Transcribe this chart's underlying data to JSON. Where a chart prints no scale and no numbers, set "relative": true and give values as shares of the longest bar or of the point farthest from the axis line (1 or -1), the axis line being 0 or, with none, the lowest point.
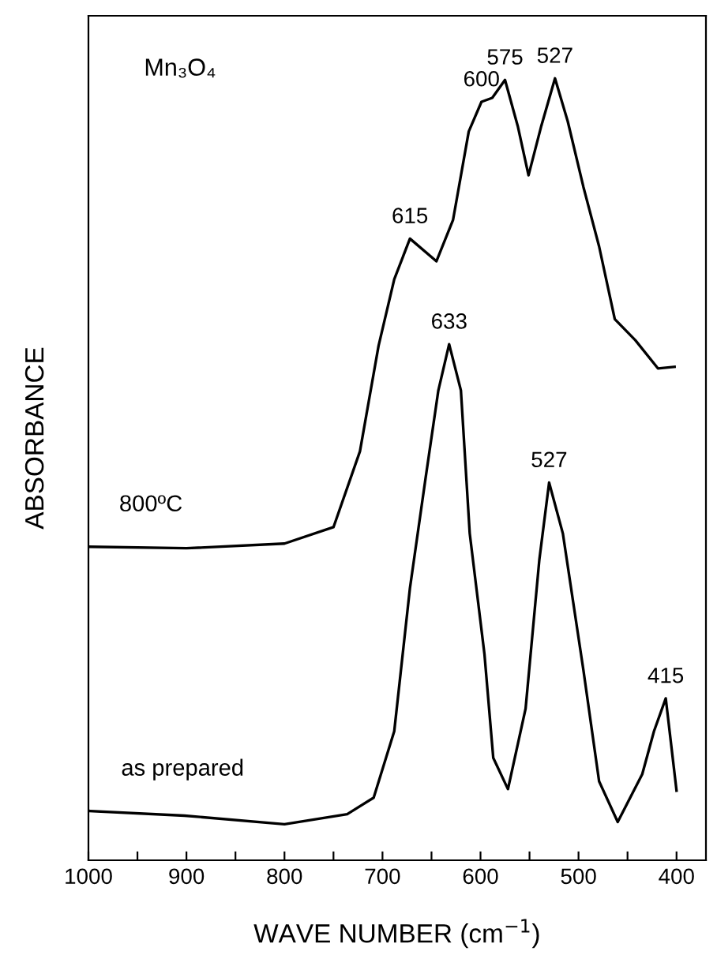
{
  "chart_data": {
    "type": "line",
    "relative": true,
    "xlabel": "WAVE NUMBER (cm$^{−1}$)",
    "ylabel": "ABSORBANCE",
    "xlim": [
      1000,
      370
    ],
    "xticks": [
      1000,
      {
        "value": 950,
        "label": null
      },
      900,
      {
        "value": 850,
        "label": null
      },
      800,
      {
        "value": 750,
        "label": null
      },
      700,
      {
        "value": 650,
        "label": null
      },
      600,
      {
        "value": 550,
        "label": null
      },
      500,
      {
        "value": 450,
        "label": null
      },
      400
    ],
    "grid": false,
    "legend": false,
    "marker": "none",
    "line_style": "solid",
    "series": [
      {
        "name": "800ºC",
        "color": "#000000",
        "x": [
          1000,
          900,
          800,
          750,
          723,
          704,
          688,
          672,
          645,
          628,
          612,
          599,
          588,
          575,
          562,
          551,
          538,
          524,
          511,
          495,
          479,
          463,
          442,
          419,
          402
        ],
        "values": [
          0.401,
          0.399,
          0.405,
          0.426,
          0.523,
          0.658,
          0.743,
          0.795,
          0.766,
          0.819,
          0.932,
          0.97,
          0.975,
          0.998,
          0.939,
          0.876,
          0.939,
          1.0,
          0.945,
          0.861,
          0.785,
          0.692,
          0.665,
          0.629,
          0.631
        ]
      },
      {
        "name": "as prepared",
        "color": "#000000",
        "x": [
          998,
          902,
          800,
          736,
          709,
          688,
          672,
          656,
          643,
          632,
          620,
          611,
          596,
          587,
          572,
          554,
          540,
          530,
          516,
          495,
          479,
          460,
          435,
          423,
          411,
          400
        ],
        "values": [
          0.063,
          0.057,
          0.046,
          0.059,
          0.08,
          0.165,
          0.348,
          0.489,
          0.601,
          0.66,
          0.601,
          0.418,
          0.264,
          0.131,
          0.091,
          0.194,
          0.384,
          0.483,
          0.418,
          0.243,
          0.101,
          0.049,
          0.11,
          0.165,
          0.207,
          0.089
        ]
      }
    ],
    "annotations": [
      "Mn₃O₄",
      {
        "text": "615",
        "x": 672,
        "y": 0.795
      },
      {
        "text": "600",
        "x": 599,
        "y": 0.97
      },
      {
        "text": "575",
        "x": 575,
        "y": 0.998
      },
      {
        "text": "527",
        "x": 524,
        "y": 1.0
      },
      {
        "text": "633",
        "x": 632,
        "y": 0.66
      },
      {
        "text": "527",
        "x": 530,
        "y": 0.483
      },
      {
        "text": "415",
        "x": 411,
        "y": 0.207
      }
    ]
  }
}
